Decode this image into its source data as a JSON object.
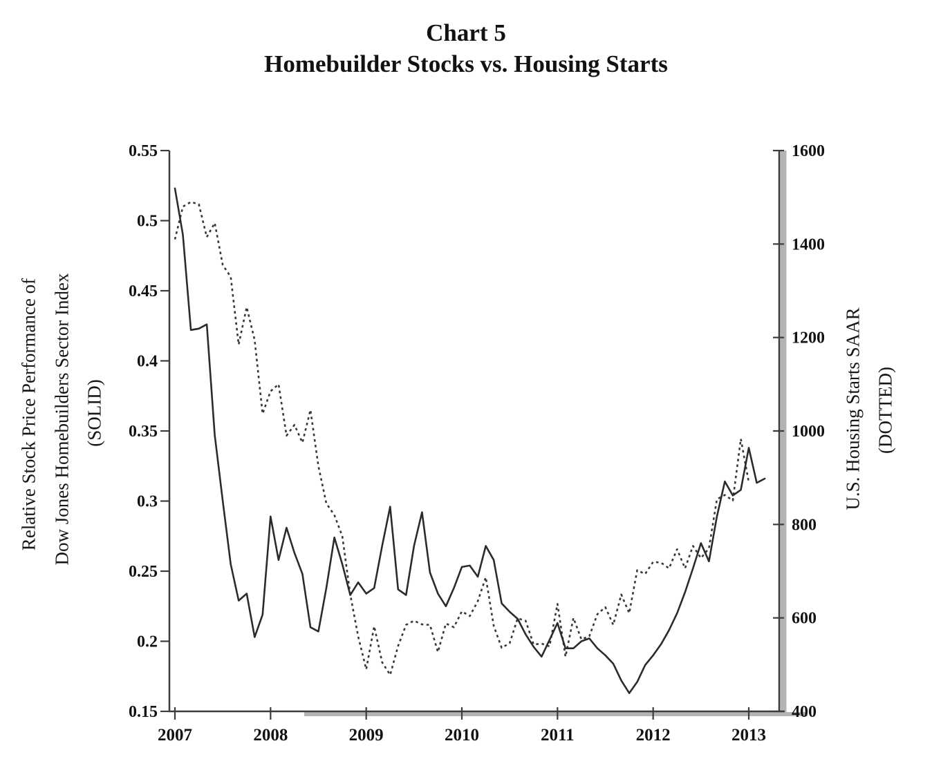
{
  "title": {
    "line1": "Chart 5",
    "line2": "Homebuilder Stocks vs. Housing Starts"
  },
  "axis_titles": {
    "left": [
      "Relative Stock Price Performance of",
      "Dow Jones Homebuilders Sector Index",
      "(SOLID)"
    ],
    "right": [
      "U.S. Housing Starts SAAR",
      "(DOTTED)"
    ]
  },
  "colors": {
    "line": "#2b2b2b",
    "dotted_line": "#383838",
    "axis": "#3c3c3c",
    "axis_shadow": "#b4b4b4",
    "text": "#121212",
    "background": "#ffffff"
  },
  "chart_data": {
    "type": "line",
    "title": "Homebuilder Stocks vs. Housing Starts",
    "x_unit": "month",
    "x_start": "2007-01",
    "x_tick_labels": [
      "2007",
      "2008",
      "2009",
      "2010",
      "2011",
      "2012",
      "2013"
    ],
    "grid": false,
    "legend_position": "none (line styles identified in axis titles)",
    "left_axis": {
      "label": "Relative Stock Price Performance of Dow Jones Homebuilders Sector Index (SOLID)",
      "min": 0.15,
      "max": 0.55,
      "tick_values": [
        0.55,
        0.5,
        0.45,
        0.4,
        0.35,
        0.3,
        0.25,
        0.2,
        0.15
      ],
      "tick_labels": [
        "0.55",
        "0.5",
        "0.45",
        "0.4",
        "0.35",
        "0.3",
        "0.25",
        "0.2",
        "0.15"
      ]
    },
    "right_axis": {
      "label": "U.S. Housing Starts SAAR (DOTTED)",
      "min": 400,
      "max": 1600,
      "tick_values": [
        1600,
        1400,
        1200,
        1000,
        800,
        600,
        400
      ],
      "tick_labels": [
        "1600",
        "1400",
        "1200",
        "1000",
        "800",
        "600",
        "400"
      ]
    },
    "series": [
      {
        "name": "Relative Stock Price Performance of Dow Jones Homebuilders Sector Index",
        "style": "solid",
        "axis": "left",
        "values": [
          0.523,
          0.49,
          0.422,
          0.423,
          0.426,
          0.347,
          0.3,
          0.255,
          0.229,
          0.234,
          0.203,
          0.219,
          0.289,
          0.258,
          0.281,
          0.263,
          0.248,
          0.21,
          0.207,
          0.238,
          0.274,
          0.255,
          0.233,
          0.242,
          0.234,
          0.238,
          0.268,
          0.296,
          0.237,
          0.233,
          0.268,
          0.292,
          0.249,
          0.234,
          0.225,
          0.238,
          0.253,
          0.254,
          0.246,
          0.268,
          0.258,
          0.227,
          0.221,
          0.216,
          0.205,
          0.196,
          0.189,
          0.201,
          0.213,
          0.195,
          0.195,
          0.2,
          0.202,
          0.195,
          0.19,
          0.184,
          0.172,
          0.163,
          0.171,
          0.183,
          0.19,
          0.198,
          0.208,
          0.22,
          0.235,
          0.252,
          0.27,
          0.257,
          0.289,
          0.314,
          0.304,
          0.308,
          0.338,
          0.313,
          0.316
        ]
      },
      {
        "name": "U.S. Housing Starts SAAR",
        "style": "dotted",
        "axis": "right",
        "values": [
          1410,
          1480,
          1490,
          1485,
          1415,
          1445,
          1355,
          1330,
          1185,
          1265,
          1195,
          1037,
          1085,
          1100,
          990,
          1013,
          975,
          1045,
          925,
          845,
          820,
          775,
          650,
          560,
          490,
          582,
          505,
          478,
          540,
          585,
          594,
          586,
          585,
          527,
          588,
          580,
          614,
          604,
          636,
          687,
          583,
          536,
          546,
          599,
          594,
          543,
          545,
          539,
          630,
          517,
          600,
          554,
          561,
          608,
          623,
          585,
          650,
          610,
          702,
          694,
          720,
          718,
          706,
          747,
          706,
          754,
          728,
          749,
          854,
          863,
          851,
          983,
          890
        ]
      }
    ]
  }
}
